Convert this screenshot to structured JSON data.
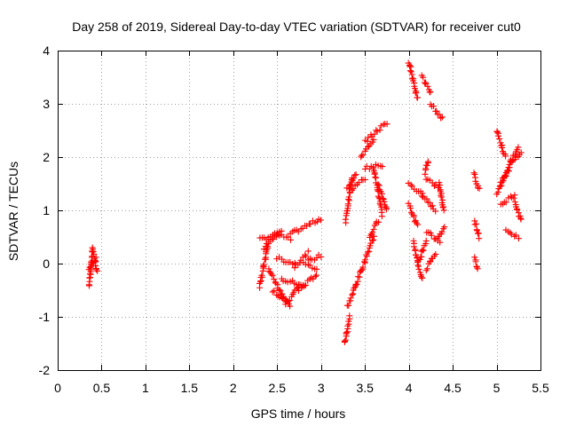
{
  "chart_data": {
    "type": "scatter",
    "title": "Day 258 of 2019, Sidereal Day-to-day VTEC variation (SDTVAR) for receiver cut0",
    "xlabel": "GPS time / hours",
    "ylabel": "SDTVAR / TECUs",
    "xlim": [
      0,
      5.5
    ],
    "ylim": [
      -2,
      4
    ],
    "xticks": [
      0,
      0.5,
      1,
      1.5,
      2,
      2.5,
      3,
      3.5,
      4,
      4.5,
      5,
      5.5
    ],
    "xtick_labels": [
      "0",
      "0.5",
      "1",
      "1.5",
      "2",
      "2.5",
      "3",
      "3.5",
      "4",
      "4.5",
      "5",
      "5.5"
    ],
    "yticks": [
      -2,
      -1,
      0,
      1,
      2,
      3,
      4
    ],
    "ytick_labels": [
      "-2",
      "-1",
      "0",
      "1",
      "2",
      "3",
      "4"
    ],
    "grid": true,
    "marker": "plus",
    "series_color": "#ff0000",
    "segments": [
      {
        "x0": 0.36,
        "x1": 0.38,
        "y0": -0.42,
        "y1": -0.05
      },
      {
        "x0": 0.38,
        "x1": 0.4,
        "y0": -0.05,
        "y1": 0.28
      },
      {
        "x0": 0.4,
        "x1": 0.45,
        "y0": 0.28,
        "y1": -0.15
      },
      {
        "x0": 0.35,
        "x1": 0.44,
        "y0": -0.1,
        "y1": 0.1
      },
      {
        "x0": 2.3,
        "x1": 2.5,
        "y0": 0.45,
        "y1": 0.55
      },
      {
        "x0": 2.3,
        "x1": 2.4,
        "y0": -0.45,
        "y1": 0.4
      },
      {
        "x0": 2.35,
        "x1": 2.55,
        "y0": 0.3,
        "y1": 0.62
      },
      {
        "x0": 2.5,
        "x1": 2.65,
        "y0": 0.55,
        "y1": 0.45
      },
      {
        "x0": 2.65,
        "x1": 3.0,
        "y0": 0.55,
        "y1": 0.85
      },
      {
        "x0": 2.4,
        "x1": 2.6,
        "y0": -0.1,
        "y1": -0.7
      },
      {
        "x0": 2.45,
        "x1": 2.65,
        "y0": -0.5,
        "y1": -0.78
      },
      {
        "x0": 2.6,
        "x1": 2.75,
        "y0": -0.78,
        "y1": -0.4
      },
      {
        "x0": 2.75,
        "x1": 2.95,
        "y0": -0.5,
        "y1": -0.2
      },
      {
        "x0": 2.5,
        "x1": 2.7,
        "y0": 0.1,
        "y1": 0.0
      },
      {
        "x0": 2.7,
        "x1": 2.85,
        "y0": -0.05,
        "y1": 0.2
      },
      {
        "x0": 2.85,
        "x1": 3.0,
        "y0": 0.05,
        "y1": 0.15
      },
      {
        "x0": 2.55,
        "x1": 2.8,
        "y0": -0.3,
        "y1": -0.4
      },
      {
        "x0": 2.8,
        "x1": 2.95,
        "y0": 0.0,
        "y1": -0.1
      },
      {
        "x0": 3.27,
        "x1": 3.33,
        "y0": -1.5,
        "y1": -1.0
      },
      {
        "x0": 3.3,
        "x1": 3.4,
        "y0": -0.8,
        "y1": -0.4
      },
      {
        "x0": 3.4,
        "x1": 3.6,
        "y0": -0.4,
        "y1": 0.5
      },
      {
        "x0": 3.28,
        "x1": 3.35,
        "y0": 0.8,
        "y1": 1.6
      },
      {
        "x0": 3.3,
        "x1": 3.4,
        "y0": 1.4,
        "y1": 1.7
      },
      {
        "x0": 3.35,
        "x1": 3.5,
        "y0": 1.4,
        "y1": 1.6
      },
      {
        "x0": 3.45,
        "x1": 3.6,
        "y0": 2.0,
        "y1": 2.3
      },
      {
        "x0": 3.5,
        "x1": 3.75,
        "y0": 2.3,
        "y1": 2.65
      },
      {
        "x0": 3.5,
        "x1": 3.7,
        "y0": 1.8,
        "y1": 1.85
      },
      {
        "x0": 3.6,
        "x1": 3.7,
        "y0": 1.8,
        "y1": 0.9
      },
      {
        "x0": 3.65,
        "x1": 3.75,
        "y0": 1.5,
        "y1": 1.0
      },
      {
        "x0": 3.55,
        "x1": 3.65,
        "y0": 0.5,
        "y1": 0.8
      },
      {
        "x0": 4.0,
        "x1": 4.1,
        "y0": 3.8,
        "y1": 3.1
      },
      {
        "x0": 4.15,
        "x1": 4.25,
        "y0": 3.5,
        "y1": 3.2
      },
      {
        "x0": 4.25,
        "x1": 4.38,
        "y0": 3.0,
        "y1": 2.72
      },
      {
        "x0": 4.0,
        "x1": 4.15,
        "y0": 1.5,
        "y1": 1.3
      },
      {
        "x0": 4.0,
        "x1": 4.1,
        "y0": 1.1,
        "y1": 0.7
      },
      {
        "x0": 4.05,
        "x1": 4.15,
        "y0": 0.4,
        "y1": -0.3
      },
      {
        "x0": 4.1,
        "x1": 4.2,
        "y0": 0.0,
        "y1": 0.4
      },
      {
        "x0": 4.2,
        "x1": 4.35,
        "y0": 0.6,
        "y1": 0.4
      },
      {
        "x0": 4.2,
        "x1": 4.3,
        "y0": -0.1,
        "y1": 0.2
      },
      {
        "x0": 4.2,
        "x1": 4.35,
        "y0": 1.6,
        "y1": 1.4
      },
      {
        "x0": 4.15,
        "x1": 4.3,
        "y0": 1.3,
        "y1": 1.0
      },
      {
        "x0": 4.18,
        "x1": 4.22,
        "y0": 1.7,
        "y1": 1.95
      },
      {
        "x0": 4.35,
        "x1": 4.4,
        "y0": 1.5,
        "y1": 1.0
      },
      {
        "x0": 4.33,
        "x1": 4.4,
        "y0": 0.45,
        "y1": 0.7
      },
      {
        "x0": 4.74,
        "x1": 4.8,
        "y0": 1.7,
        "y1": 1.4
      },
      {
        "x0": 4.75,
        "x1": 4.8,
        "y0": 0.8,
        "y1": 0.5
      },
      {
        "x0": 4.75,
        "x1": 4.78,
        "y0": 0.1,
        "y1": -0.1
      },
      {
        "x0": 5.0,
        "x1": 5.1,
        "y0": 2.5,
        "y1": 2.0
      },
      {
        "x0": 5.0,
        "x1": 5.15,
        "y0": 1.3,
        "y1": 1.8
      },
      {
        "x0": 5.05,
        "x1": 5.25,
        "y0": 1.5,
        "y1": 2.2
      },
      {
        "x0": 5.1,
        "x1": 5.25,
        "y0": 0.6,
        "y1": 0.5
      },
      {
        "x0": 5.15,
        "x1": 5.28,
        "y0": 1.9,
        "y1": 2.1
      },
      {
        "x0": 5.2,
        "x1": 5.28,
        "y0": 1.2,
        "y1": 0.8
      },
      {
        "x0": 5.05,
        "x1": 5.2,
        "y0": 1.1,
        "y1": 1.3
      }
    ]
  }
}
